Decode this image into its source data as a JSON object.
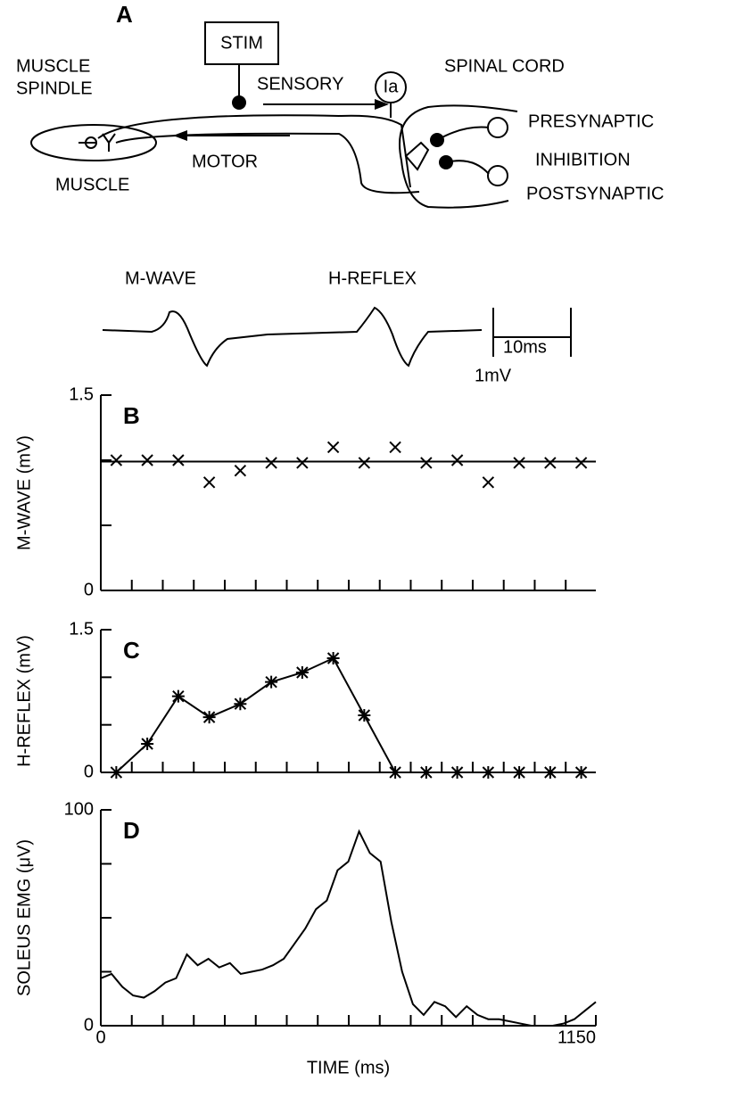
{
  "diagram": {
    "panel_label": "A",
    "stim": "STIM",
    "spindle_1": "MUSCLE",
    "spindle_2": "SPINDLE",
    "sensory": "SENSORY",
    "ia": "Ia",
    "spinal_cord": "SPINAL CORD",
    "presynaptic": "PRESYNAPTIC",
    "inhibition": "INHIBITION",
    "postsynaptic": "POSTSYNAPTIC",
    "motor": "MOTOR",
    "muscle": "MUSCLE"
  },
  "traces": {
    "m_wave": "M-WAVE",
    "h_reflex": "H-REFLEX",
    "time_scale": "10ms",
    "volt_scale": "1mV"
  },
  "chart_data": [
    {
      "type": "scatter",
      "panel_label": "B",
      "ylabel": "M-WAVE (mV)",
      "marker": "x",
      "color": "#000000",
      "xlim": [
        0,
        1150
      ],
      "ylim": [
        0,
        1.5
      ],
      "yticks": [
        0,
        1.5
      ],
      "yminor_ticks": [
        0.5,
        1.0
      ],
      "xminor_ticks": [
        72,
        144,
        216,
        288,
        360,
        432,
        504,
        576,
        648,
        720,
        792,
        864,
        936,
        1008,
        1080
      ],
      "hline": 0.99,
      "x": [
        36,
        108,
        180,
        252,
        324,
        396,
        468,
        540,
        612,
        684,
        756,
        828,
        900,
        972,
        1044,
        1116
      ],
      "values": [
        1.0,
        1.0,
        1.0,
        0.83,
        0.92,
        0.98,
        0.98,
        1.1,
        0.98,
        1.1,
        0.98,
        1.0,
        0.83,
        0.98,
        0.98,
        0.98
      ]
    },
    {
      "type": "line",
      "panel_label": "C",
      "ylabel": "H-REFLEX (mV)",
      "marker": "asterisk",
      "color": "#000000",
      "xlim": [
        0,
        1150
      ],
      "ylim": [
        0,
        1.5
      ],
      "yticks": [
        0,
        1.5
      ],
      "yminor_ticks": [
        0.5,
        1.0
      ],
      "xminor_ticks": [
        72,
        144,
        216,
        288,
        360,
        432,
        504,
        576,
        648,
        720,
        792,
        864,
        936,
        1008,
        1080
      ],
      "x": [
        36,
        108,
        180,
        252,
        324,
        396,
        468,
        540,
        612,
        684,
        756,
        828,
        900,
        972,
        1044,
        1116
      ],
      "values": [
        0,
        0.3,
        0.8,
        0.58,
        0.72,
        0.95,
        1.05,
        1.2,
        0.6,
        0,
        0,
        0,
        0,
        0,
        0,
        0
      ]
    },
    {
      "type": "line",
      "panel_label": "D",
      "ylabel": "SOLEUS EMG (μV)",
      "xlabel": "TIME (ms)",
      "color": "#000000",
      "xlim": [
        0,
        1150
      ],
      "ylim": [
        0,
        100
      ],
      "yticks": [
        0,
        100
      ],
      "xticks": [
        0,
        1150
      ],
      "yminor_ticks": [
        25,
        50,
        75
      ],
      "xminor_ticks": [
        72,
        144,
        216,
        288,
        360,
        432,
        504,
        576,
        648,
        720,
        792,
        864,
        936,
        1008,
        1080
      ],
      "x": [
        0,
        25,
        50,
        75,
        100,
        125,
        150,
        175,
        200,
        225,
        250,
        275,
        300,
        325,
        350,
        375,
        400,
        425,
        450,
        475,
        500,
        525,
        550,
        575,
        600,
        625,
        650,
        675,
        700,
        725,
        750,
        775,
        800,
        825,
        850,
        875,
        900,
        925,
        950,
        975,
        1000,
        1025,
        1050,
        1075,
        1100,
        1125,
        1150
      ],
      "values": [
        22,
        24,
        18,
        14,
        13,
        16,
        20,
        22,
        33,
        28,
        31,
        27,
        29,
        24,
        25,
        26,
        28,
        31,
        38,
        45,
        54,
        58,
        72,
        76,
        90,
        80,
        76,
        48,
        25,
        10,
        5,
        11,
        9,
        4,
        9,
        5,
        3,
        3,
        2,
        1,
        0,
        0,
        0,
        1,
        3,
        7,
        11
      ]
    }
  ]
}
